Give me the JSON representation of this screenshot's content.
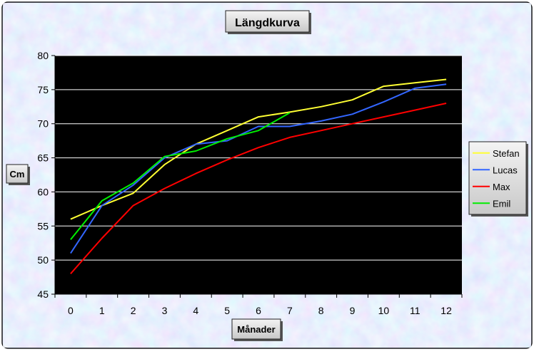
{
  "chart_data": {
    "type": "line",
    "title": "Längdkurva",
    "xlabel": "Månader",
    "ylabel": "Cm",
    "x": [
      0,
      1,
      2,
      3,
      4,
      5,
      6,
      7,
      8,
      9,
      10,
      11,
      12
    ],
    "ylim": [
      45,
      80
    ],
    "yticks": [
      45,
      50,
      55,
      60,
      65,
      70,
      75,
      80
    ],
    "grid": true,
    "legend_position": "right",
    "plot_background": "#000000",
    "series": [
      {
        "name": "Stefan",
        "color": "#ffff33",
        "values": [
          56,
          58,
          59.8,
          64,
          67,
          69,
          71,
          71.7,
          72.5,
          73.5,
          75.5,
          76,
          76.5
        ]
      },
      {
        "name": "Lucas",
        "color": "#3366ff",
        "values": [
          51,
          58,
          61,
          65,
          67,
          67.5,
          69.6,
          69.6,
          70.4,
          71.4,
          73.2,
          75.2,
          75.8
        ]
      },
      {
        "name": "Max",
        "color": "#ff0000",
        "values": [
          48,
          53.2,
          58,
          60.5,
          62.7,
          64.7,
          66.5,
          68,
          69,
          70,
          71,
          72,
          73
        ]
      },
      {
        "name": "Emil",
        "color": "#00ee00",
        "values": [
          53,
          58.7,
          61.3,
          65.2,
          66,
          67.8,
          69,
          71.6,
          null,
          null,
          null,
          null,
          null
        ]
      }
    ]
  }
}
